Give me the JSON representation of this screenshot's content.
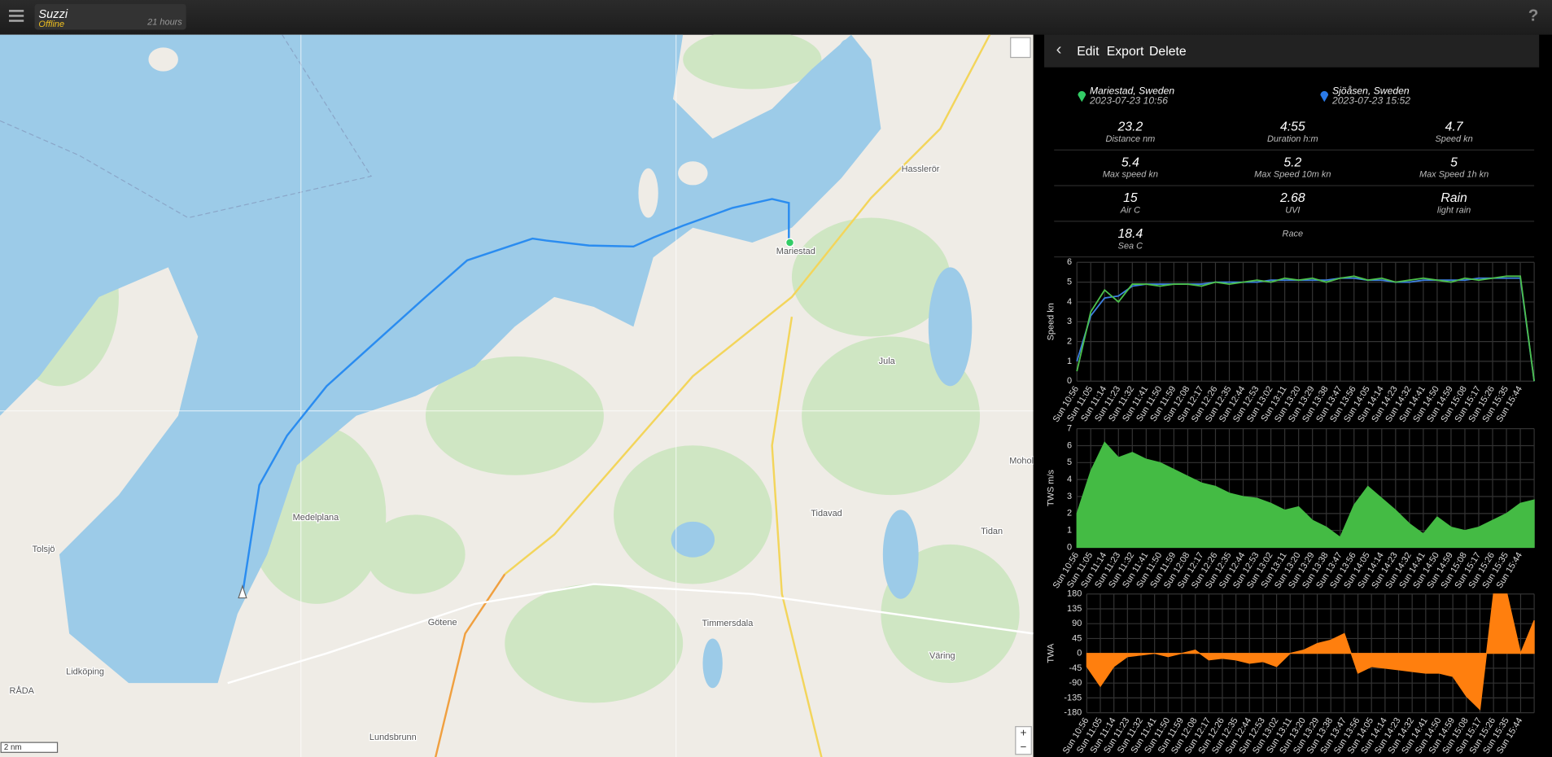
{
  "header": {
    "app_name": "Suzzi",
    "status": "Offline",
    "age": "21 hours",
    "help": "?"
  },
  "toolbar": {
    "back": "‹",
    "actions": [
      "Edit",
      "Export",
      "Delete"
    ]
  },
  "trip": {
    "start": {
      "place": "Mariestad, Sweden",
      "time": "2023-07-23 10:56"
    },
    "end": {
      "place": "Sjöåsen, Sweden",
      "time": "2023-07-23 15:52"
    },
    "stats": [
      {
        "value": 23.2,
        "label": "Distance nm"
      },
      {
        "value": "4:55",
        "label": "Duration h:m"
      },
      {
        "value": 4.7,
        "label": "Speed kn"
      },
      {
        "value": 5.4,
        "label": "Max speed kn"
      },
      {
        "value": 5.2,
        "label": "Max Speed 10m kn"
      },
      {
        "value": 5,
        "label": "Max Speed 1h kn"
      },
      {
        "value": 15,
        "label": "Air C"
      },
      {
        "value": 2.68,
        "label": "UVI"
      },
      {
        "value": "Rain",
        "label": "light rain"
      },
      {
        "value": 18.4,
        "label": "Sea C"
      }
    ],
    "tag": "Race"
  },
  "map": {
    "labels": [
      "Mariestad",
      "Hasslerör",
      "Jula",
      "Medelplana",
      "Tidavad",
      "Tidan",
      "Mohol",
      "Tolsjö",
      "Götene",
      "Timmersdala",
      "Väring",
      "Lidköping",
      "RÅDA",
      "Lundsbrunn"
    ],
    "scale": "2 nm",
    "zoom_in": "+",
    "zoom_out": "−"
  },
  "chart_data": [
    {
      "type": "line",
      "ylabel": "Speed kn",
      "ylim": [
        0,
        6
      ],
      "yticks": [
        0,
        1,
        2,
        3,
        4,
        5,
        6
      ],
      "grid": true,
      "categories": [
        "Sun 10:56",
        "Sun 11:05",
        "Sun 11:14",
        "Sun 11:23",
        "Sun 11:32",
        "Sun 11:41",
        "Sun 11:50",
        "Sun 11:59",
        "Sun 12:08",
        "Sun 12:17",
        "Sun 12:26",
        "Sun 12:35",
        "Sun 12:44",
        "Sun 12:53",
        "Sun 13:02",
        "Sun 13:11",
        "Sun 13:20",
        "Sun 13:29",
        "Sun 13:38",
        "Sun 13:47",
        "Sun 13:56",
        "Sun 14:05",
        "Sun 14:14",
        "Sun 14:23",
        "Sun 14:32",
        "Sun 14:41",
        "Sun 14:50",
        "Sun 14:59",
        "Sun 15:08",
        "Sun 15:17",
        "Sun 15:26",
        "Sun 15:35",
        "Sun 15:44",
        null
      ],
      "series": [
        {
          "color": "#3d7fe0",
          "values": [
            1.0,
            3.3,
            4.2,
            4.3,
            4.8,
            4.9,
            4.9,
            4.9,
            4.9,
            4.9,
            5.0,
            5.0,
            5.0,
            5.0,
            5.1,
            5.1,
            5.1,
            5.1,
            5.1,
            5.2,
            5.2,
            5.1,
            5.1,
            5.0,
            5.0,
            5.1,
            5.1,
            5.1,
            5.1,
            5.2,
            5.2,
            5.2,
            5.2,
            0
          ]
        },
        {
          "color": "#4cc04c",
          "values": [
            0.5,
            3.5,
            4.6,
            4.0,
            4.9,
            4.9,
            4.8,
            4.9,
            4.9,
            4.8,
            5.0,
            4.9,
            5.0,
            5.1,
            5.0,
            5.2,
            5.1,
            5.2,
            5.0,
            5.2,
            5.3,
            5.1,
            5.2,
            5.0,
            5.1,
            5.2,
            5.1,
            5.0,
            5.2,
            5.1,
            5.2,
            5.3,
            5.3,
            0
          ]
        }
      ]
    },
    {
      "type": "area",
      "ylabel": "TWS m/s",
      "ylim": [
        0,
        7
      ],
      "yticks": [
        0,
        1,
        2,
        3,
        4,
        5,
        6,
        7
      ],
      "grid": true,
      "categories": [
        "Sun 10:56",
        "Sun 11:05",
        "Sun 11:14",
        "Sun 11:23",
        "Sun 11:32",
        "Sun 11:41",
        "Sun 11:50",
        "Sun 11:59",
        "Sun 12:08",
        "Sun 12:17",
        "Sun 12:26",
        "Sun 12:35",
        "Sun 12:44",
        "Sun 12:53",
        "Sun 13:02",
        "Sun 13:11",
        "Sun 13:20",
        "Sun 13:29",
        "Sun 13:38",
        "Sun 13:47",
        "Sun 13:56",
        "Sun 14:05",
        "Sun 14:14",
        "Sun 14:23",
        "Sun 14:32",
        "Sun 14:41",
        "Sun 14:50",
        "Sun 14:59",
        "Sun 15:08",
        "Sun 15:17",
        "Sun 15:26",
        "Sun 15:35",
        "Sun 15:44",
        null
      ],
      "series": [
        {
          "color": "#44bb44",
          "values": [
            2.0,
            4.5,
            6.2,
            5.3,
            5.6,
            5.2,
            5.0,
            4.6,
            4.2,
            3.8,
            3.6,
            3.2,
            3.0,
            2.9,
            2.6,
            2.2,
            2.4,
            1.6,
            1.2,
            0.6,
            2.5,
            3.6,
            2.9,
            2.2,
            1.4,
            0.8,
            1.8,
            1.2,
            1.0,
            1.2,
            1.6,
            2.0,
            2.6,
            2.8
          ]
        }
      ]
    },
    {
      "type": "area",
      "ylabel": "TWA",
      "ylim": [
        -180,
        180
      ],
      "yticks": [
        -180,
        -135,
        -90,
        -45,
        0,
        45,
        90,
        135,
        180
      ],
      "grid": true,
      "categories": [
        "Sun 10:56",
        "Sun 11:05",
        "Sun 11:14",
        "Sun 11:23",
        "Sun 11:32",
        "Sun 11:41",
        "Sun 11:50",
        "Sun 11:59",
        "Sun 12:08",
        "Sun 12:17",
        "Sun 12:26",
        "Sun 12:35",
        "Sun 12:44",
        "Sun 12:53",
        "Sun 13:02",
        "Sun 13:11",
        "Sun 13:20",
        "Sun 13:29",
        "Sun 13:38",
        "Sun 13:47",
        "Sun 13:56",
        "Sun 14:05",
        "Sun 14:14",
        "Sun 14:23",
        "Sun 14:32",
        "Sun 14:41",
        "Sun 14:50",
        "Sun 14:59",
        "Sun 15:08",
        "Sun 15:17",
        "Sun 15:26",
        "Sun 15:35",
        "Sun 15:44",
        null
      ],
      "series": [
        {
          "color": "#ff7f0e",
          "values": [
            -40,
            -100,
            -40,
            -10,
            -5,
            0,
            -10,
            0,
            10,
            -20,
            -15,
            -20,
            -30,
            -25,
            -40,
            0,
            10,
            30,
            40,
            60,
            -60,
            -40,
            -45,
            -50,
            -55,
            -60,
            -60,
            -70,
            -130,
            -170,
            180,
            180,
            0,
            100
          ]
        }
      ]
    }
  ]
}
